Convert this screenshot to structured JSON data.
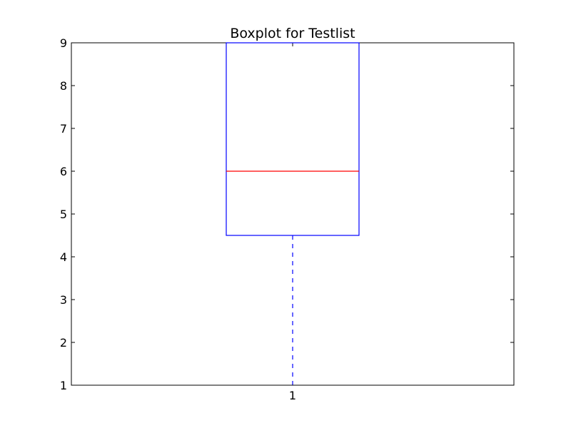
{
  "chart_data": {
    "type": "boxplot",
    "title": "Boxplot for Testlist",
    "xlabel": "",
    "ylabel": "",
    "categories": [
      "1"
    ],
    "boxes": [
      {
        "category": "1",
        "whisker_low": 1,
        "q1": 4.5,
        "median": 6,
        "q3": 9,
        "whisker_high": 9
      }
    ],
    "ylim": [
      1,
      9
    ],
    "y_ticks": [
      "1",
      "2",
      "3",
      "4",
      "5",
      "6",
      "7",
      "8",
      "9"
    ],
    "grid": false,
    "colors": {
      "box": "#0000ff",
      "median": "#ff0000",
      "whisker": "#0000ff",
      "cap": "#000000",
      "axes": "#000000"
    }
  }
}
